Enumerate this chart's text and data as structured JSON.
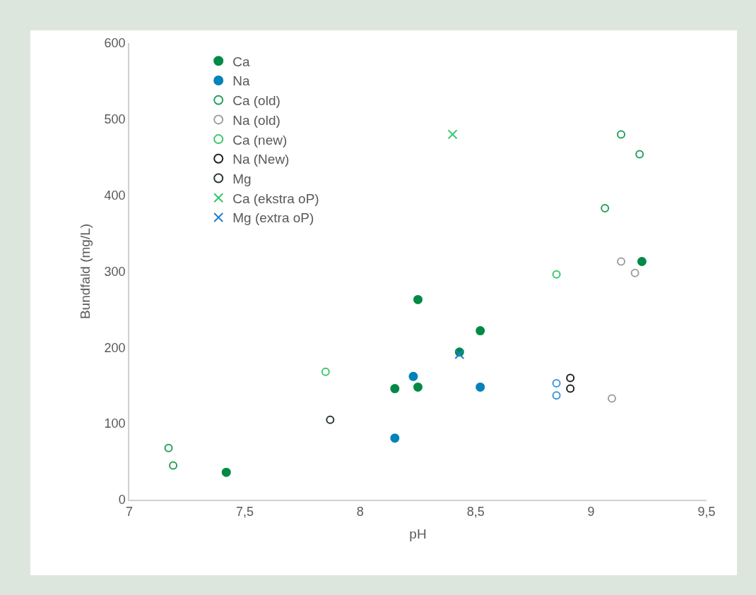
{
  "chart_data": {
    "type": "scatter",
    "xlabel": "pH",
    "ylabel": "Bundfald (mg/L)",
    "xlim": [
      7,
      9.5
    ],
    "xticks": [
      7,
      {
        "value": 7.5,
        "label": "7,5"
      },
      8,
      {
        "value": 8.5,
        "label": "8,5"
      },
      9,
      {
        "value": 9.5,
        "label": "9,5"
      }
    ],
    "ylim": [
      0,
      600
    ],
    "yticks": [
      0,
      100,
      200,
      300,
      400,
      500,
      600
    ],
    "legend": "top left",
    "series": [
      {
        "name": "Ca",
        "color": "#008a45",
        "marker": "circle",
        "x": [
          7.42,
          8.15,
          8.25,
          8.25,
          8.43,
          8.52,
          9.22
        ],
        "values": [
          36,
          146,
          148,
          263,
          194,
          222,
          313
        ]
      },
      {
        "name": "Na",
        "color": "#0083b8",
        "marker": "circle",
        "x": [
          8.23,
          8.15,
          8.52
        ],
        "values": [
          162,
          81,
          148
        ]
      },
      {
        "name": "Ca (old)",
        "color": "#25a05a",
        "marker": "circle-open",
        "x": [
          7.17,
          7.19,
          9.06,
          9.13,
          9.21
        ],
        "values": [
          68,
          45,
          383,
          480,
          454
        ]
      },
      {
        "name": "Na (old)",
        "color": "#a0a0a0",
        "marker": "circle-open",
        "x": [
          9.13,
          9.19,
          9.09
        ],
        "values": [
          313,
          298,
          133
        ]
      },
      {
        "name": "Ca (new)",
        "color": "#3cc86e",
        "marker": "circle-open",
        "x": [
          7.85,
          8.85
        ],
        "values": [
          168,
          296
        ]
      },
      {
        "name": "Na (New)",
        "color": "#202020",
        "marker": "circle-open",
        "x": [
          8.91,
          8.91
        ],
        "values": [
          160,
          146
        ]
      },
      {
        "name": "Mg",
        "color": "#2a3a30",
        "marker": "circle-open",
        "x": [
          7.87
        ],
        "values": [
          105
        ]
      },
      {
        "name": "Ca (ekstra oP)",
        "color": "#2ec86a",
        "marker": "cross",
        "x": [
          8.4
        ],
        "values": [
          480
        ]
      },
      {
        "name": "Mg (extra oP)",
        "color": "#1f7fd0",
        "marker": "cross",
        "x": [
          8.43
        ],
        "values": [
          191
        ]
      },
      {
        "color": "#3f95e0",
        "marker": "circle-open",
        "x": [
          8.85,
          8.85
        ],
        "values": [
          153,
          137
        ]
      }
    ]
  }
}
